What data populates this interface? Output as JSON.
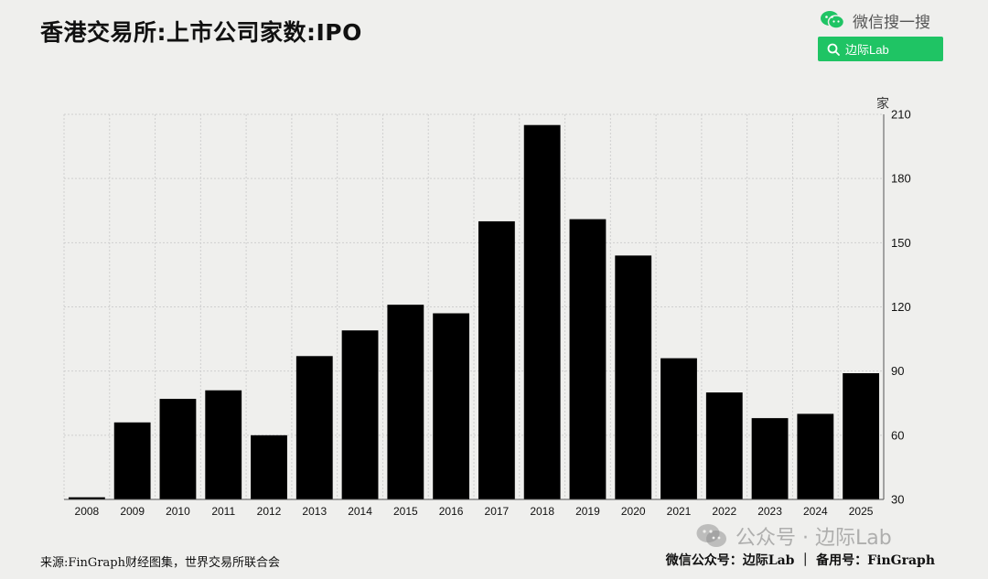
{
  "header": {
    "title": "香港交易所:上市公司家数:IPO",
    "search_brand": "微信搜一搜",
    "search_pill": "边际Lab"
  },
  "footer": {
    "source": "来源:FinGraph财经图集，世界交易所联合会",
    "right": "微信公众号：边际Lab ｜ 备用号：FinGraph",
    "watermark": "公众号 · 边际Lab"
  },
  "colors": {
    "bar": "#000000",
    "accent": "#1fc464",
    "background": "#efefed",
    "grid": "#cfcfcf"
  },
  "chart_data": {
    "type": "bar",
    "title": "香港交易所:上市公司家数:IPO",
    "ylabel": "家",
    "y_axis_side": "right",
    "ylim": [
      30,
      210
    ],
    "yticks": [
      30,
      60,
      90,
      120,
      150,
      180,
      210
    ],
    "grid": true,
    "categories": [
      "2008",
      "2009",
      "2010",
      "2011",
      "2012",
      "2013",
      "2014",
      "2015",
      "2016",
      "2017",
      "2018",
      "2019",
      "2020",
      "2021",
      "2022",
      "2023",
      "2024",
      "2025"
    ],
    "values": [
      31,
      66,
      77,
      81,
      60,
      97,
      109,
      121,
      117,
      160,
      205,
      161,
      144,
      96,
      80,
      68,
      70,
      89
    ]
  }
}
